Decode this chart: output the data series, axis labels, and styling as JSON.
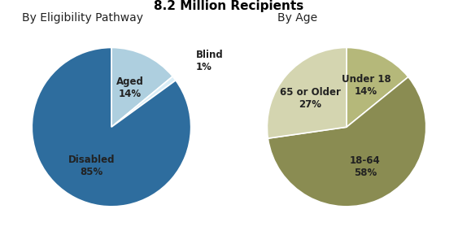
{
  "title": "8.2 Million Recipients",
  "title_fontsize": 11,
  "chart1_title": "By Eligibility Pathway",
  "chart2_title": "By Age",
  "chart1_values": [
    14,
    1,
    85
  ],
  "chart1_colors": [
    "#aecfdf",
    "#daeef7",
    "#2e6d9e"
  ],
  "chart1_startangle": 90,
  "chart1_label_names": [
    "Aged",
    "Blind",
    "Disabled"
  ],
  "chart1_label_pcts": [
    "14%",
    "1%",
    "85%"
  ],
  "chart2_values": [
    14,
    58,
    27
  ],
  "chart2_colors": [
    "#b5b87a",
    "#8a8c52",
    "#d4d5b0"
  ],
  "chart2_startangle": 90,
  "chart2_label_names": [
    "Under 18",
    "18-64",
    "65 or Older"
  ],
  "chart2_label_pcts": [
    "14%",
    "58%",
    "27%"
  ],
  "background_color": "#ffffff",
  "label_fontsize": 8.5,
  "subtitle_fontsize": 10,
  "label_color": "#222222"
}
